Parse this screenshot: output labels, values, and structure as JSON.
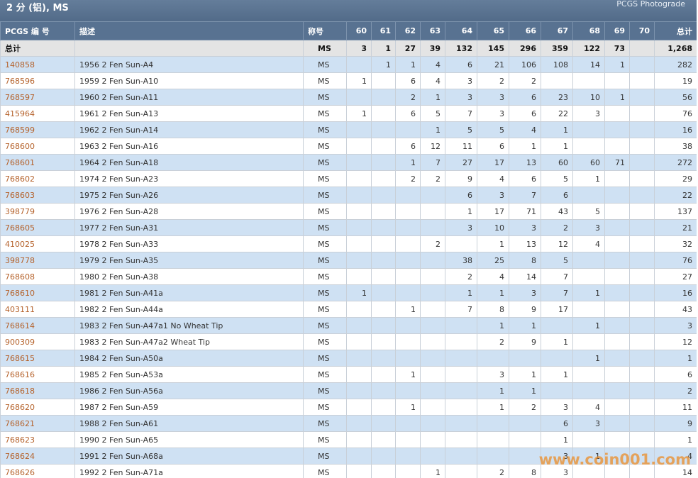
{
  "header": {
    "title": "2 分 (铝), MS",
    "link": "PCGS Photograde"
  },
  "table": {
    "columns": [
      "PCGS 编 号",
      "描述",
      "称号",
      "60",
      "61",
      "62",
      "63",
      "64",
      "65",
      "66",
      "67",
      "68",
      "69",
      "70",
      "总计"
    ],
    "total_row": [
      "总计",
      null,
      "MS",
      3,
      1,
      27,
      39,
      132,
      145,
      296,
      359,
      122,
      73,
      null,
      "1,268"
    ],
    "rows": [
      [
        "140858",
        "1956 2 Fen Sun-A4",
        "MS",
        null,
        1,
        1,
        4,
        6,
        21,
        106,
        108,
        14,
        1,
        null,
        282
      ],
      [
        "768596",
        "1959 2 Fen Sun-A10",
        "MS",
        1,
        null,
        6,
        4,
        3,
        2,
        2,
        null,
        null,
        null,
        null,
        19
      ],
      [
        "768597",
        "1960 2 Fen Sun-A11",
        "MS",
        null,
        null,
        2,
        1,
        3,
        3,
        6,
        23,
        10,
        1,
        null,
        56
      ],
      [
        "415964",
        "1961 2 Fen Sun-A13",
        "MS",
        1,
        null,
        6,
        5,
        7,
        3,
        6,
        22,
        3,
        null,
        null,
        76
      ],
      [
        "768599",
        "1962 2 Fen Sun-A14",
        "MS",
        null,
        null,
        null,
        1,
        5,
        5,
        4,
        1,
        null,
        null,
        null,
        16
      ],
      [
        "768600",
        "1963 2 Fen Sun-A16",
        "MS",
        null,
        null,
        6,
        12,
        11,
        6,
        1,
        1,
        null,
        null,
        null,
        38
      ],
      [
        "768601",
        "1964 2 Fen Sun-A18",
        "MS",
        null,
        null,
        1,
        7,
        27,
        17,
        13,
        60,
        60,
        71,
        null,
        272
      ],
      [
        "768602",
        "1974 2 Fen Sun-A23",
        "MS",
        null,
        null,
        2,
        2,
        9,
        4,
        6,
        5,
        1,
        null,
        null,
        29
      ],
      [
        "768603",
        "1975 2 Fen Sun-A26",
        "MS",
        null,
        null,
        null,
        null,
        6,
        3,
        7,
        6,
        null,
        null,
        null,
        22
      ],
      [
        "398779",
        "1976 2 Fen Sun-A28",
        "MS",
        null,
        null,
        null,
        null,
        1,
        17,
        71,
        43,
        5,
        null,
        null,
        137
      ],
      [
        "768605",
        "1977 2 Fen Sun-A31",
        "MS",
        null,
        null,
        null,
        null,
        3,
        10,
        3,
        2,
        3,
        null,
        null,
        21
      ],
      [
        "410025",
        "1978 2 Fen Sun-A33",
        "MS",
        null,
        null,
        null,
        2,
        null,
        1,
        13,
        12,
        4,
        null,
        null,
        32
      ],
      [
        "398778",
        "1979 2 Fen Sun-A35",
        "MS",
        null,
        null,
        null,
        null,
        38,
        25,
        8,
        5,
        null,
        null,
        null,
        76
      ],
      [
        "768608",
        "1980 2 Fen Sun-A38",
        "MS",
        null,
        null,
        null,
        null,
        2,
        4,
        14,
        7,
        null,
        null,
        null,
        27
      ],
      [
        "768610",
        "1981 2 Fen Sun-A41a",
        "MS",
        1,
        null,
        null,
        null,
        1,
        1,
        3,
        7,
        1,
        null,
        null,
        16
      ],
      [
        "403111",
        "1982 2 Fen Sun-A44a",
        "MS",
        null,
        null,
        1,
        null,
        7,
        8,
        9,
        17,
        null,
        null,
        null,
        43
      ],
      [
        "768614",
        "1983 2 Fen Sun-A47a1 No Wheat Tip",
        "MS",
        null,
        null,
        null,
        null,
        null,
        1,
        1,
        null,
        1,
        null,
        null,
        3
      ],
      [
        "900309",
        "1983 2 Fen Sun-A47a2 Wheat Tip",
        "MS",
        null,
        null,
        null,
        null,
        null,
        2,
        9,
        1,
        null,
        null,
        null,
        12
      ],
      [
        "768615",
        "1984 2 Fen Sun-A50a",
        "MS",
        null,
        null,
        null,
        null,
        null,
        null,
        null,
        null,
        1,
        null,
        null,
        1
      ],
      [
        "768616",
        "1985 2 Fen Sun-A53a",
        "MS",
        null,
        null,
        1,
        null,
        null,
        3,
        1,
        1,
        null,
        null,
        null,
        6
      ],
      [
        "768618",
        "1986 2 Fen Sun-A56a",
        "MS",
        null,
        null,
        null,
        null,
        null,
        1,
        1,
        null,
        null,
        null,
        null,
        2
      ],
      [
        "768620",
        "1987 2 Fen Sun-A59",
        "MS",
        null,
        null,
        1,
        null,
        null,
        1,
        2,
        3,
        4,
        null,
        null,
        11
      ],
      [
        "768621",
        "1988 2 Fen Sun-A61",
        "MS",
        null,
        null,
        null,
        null,
        null,
        null,
        null,
        6,
        3,
        null,
        null,
        9
      ],
      [
        "768623",
        "1990 2 Fen Sun-A65",
        "MS",
        null,
        null,
        null,
        null,
        null,
        null,
        null,
        1,
        null,
        null,
        null,
        1
      ],
      [
        "768624",
        "1991 2 Fen Sun-A68a",
        "MS",
        null,
        null,
        null,
        null,
        null,
        null,
        null,
        3,
        1,
        null,
        null,
        4
      ],
      [
        "768626",
        "1992 2 Fen Sun-A71a",
        "MS",
        null,
        null,
        null,
        1,
        null,
        2,
        8,
        3,
        null,
        null,
        null,
        14
      ]
    ]
  },
  "watermark": "www.coin001.com"
}
